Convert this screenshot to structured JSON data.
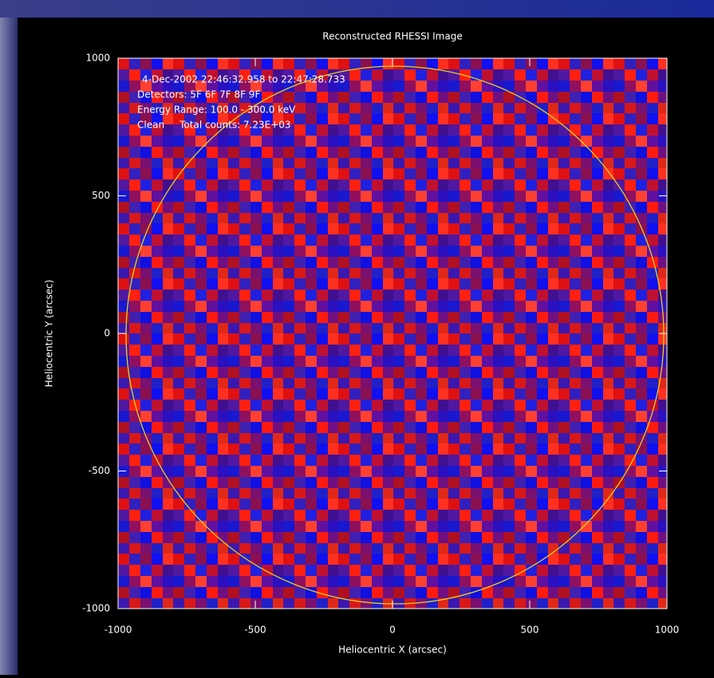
{
  "chart_data": {
    "type": "heatmap",
    "title": "Reconstructed RHESSI Image",
    "annotations": [
      "4-Dec-2002 22:46:32.958 to 22:47:28.733",
      "Detectors: 5F 6F 7F 8F 9F",
      "Energy Range: 100.0 - 300.0 keV",
      "Clean     Total counts: 7.23E+03"
    ],
    "x_label": "Heliocentric X (arcsec)",
    "y_label": "Heliocentric Y (arcsec)",
    "xlim": [
      -1000,
      1000
    ],
    "ylim": [
      -1000,
      1000
    ],
    "xticks": [
      -1000,
      -500,
      0,
      500,
      1000
    ],
    "yticks": [
      -1000,
      -500,
      0,
      500,
      1000
    ]
  }
}
